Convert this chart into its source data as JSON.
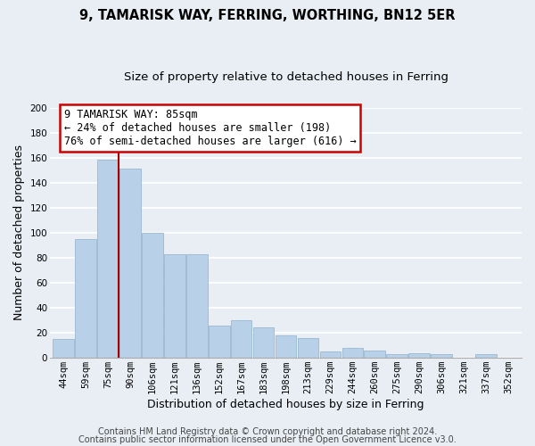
{
  "title": "9, TAMARISK WAY, FERRING, WORTHING, BN12 5ER",
  "subtitle": "Size of property relative to detached houses in Ferring",
  "xlabel": "Distribution of detached houses by size in Ferring",
  "ylabel": "Number of detached properties",
  "categories": [
    "44sqm",
    "59sqm",
    "75sqm",
    "90sqm",
    "106sqm",
    "121sqm",
    "136sqm",
    "152sqm",
    "167sqm",
    "183sqm",
    "198sqm",
    "213sqm",
    "229sqm",
    "244sqm",
    "260sqm",
    "275sqm",
    "290sqm",
    "306sqm",
    "321sqm",
    "337sqm",
    "352sqm"
  ],
  "values": [
    15,
    95,
    158,
    151,
    100,
    83,
    83,
    26,
    30,
    24,
    18,
    16,
    5,
    8,
    6,
    3,
    4,
    3,
    0,
    3,
    0
  ],
  "bar_color": "#b8d0e8",
  "bar_edge_color": "#9ab8d0",
  "vline_color": "#aa0000",
  "annotation_text": "9 TAMARISK WAY: 85sqm\n← 24% of detached houses are smaller (198)\n76% of semi-detached houses are larger (616) →",
  "annotation_box_edge_color": "#cc0000",
  "annotation_box_face_color": "#ffffff",
  "ylim": [
    0,
    200
  ],
  "yticks": [
    0,
    20,
    40,
    60,
    80,
    100,
    120,
    140,
    160,
    180,
    200
  ],
  "footer1": "Contains HM Land Registry data © Crown copyright and database right 2024.",
  "footer2": "Contains public sector information licensed under the Open Government Licence v3.0.",
  "background_color": "#e8eef4",
  "grid_color": "#ffffff",
  "title_fontsize": 10.5,
  "subtitle_fontsize": 9.5,
  "axis_label_fontsize": 9,
  "tick_fontsize": 7.5,
  "annotation_fontsize": 8.5,
  "footer_fontsize": 7
}
